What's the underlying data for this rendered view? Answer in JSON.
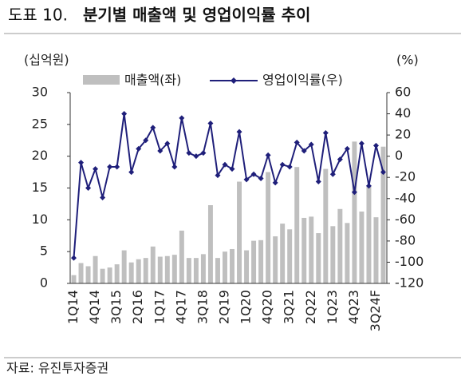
{
  "chart_data": {
    "type": "bar_line",
    "figure_label": "도표 10.",
    "title": "분기별 매출액 및 영업이익률 추이",
    "y_unit": "(십억원)",
    "y2_unit": "(%)",
    "source": "자료: 유진투자증권",
    "categories": [
      "1Q14",
      null,
      null,
      "4Q14",
      null,
      null,
      "3Q15",
      null,
      null,
      "2Q16",
      null,
      null,
      "1Q17",
      null,
      null,
      "4Q17",
      null,
      null,
      "3Q18",
      null,
      null,
      "2Q19",
      null,
      null,
      "1Q20",
      null,
      null,
      "4Q20",
      null,
      null,
      "3Q21",
      null,
      null,
      "2Q22",
      null,
      null,
      "1Q23",
      null,
      null,
      "4Q23",
      null,
      null,
      "3Q24F",
      null
    ],
    "series": [
      {
        "name": "매출액(좌)",
        "color": "#bfbfbf",
        "axis": "y",
        "values": [
          1.3,
          3.2,
          2.7,
          4.3,
          2.3,
          2.5,
          3.0,
          5.2,
          3.3,
          3.8,
          4.0,
          5.8,
          4.2,
          4.3,
          4.5,
          8.3,
          4.0,
          4.0,
          4.6,
          12.3,
          4.0,
          5.0,
          5.4,
          16.0,
          5.2,
          6.7,
          6.8,
          17.5,
          7.4,
          9.4,
          8.5,
          18.3,
          10.3,
          10.5,
          7.9,
          18.0,
          9.0,
          11.7,
          9.5,
          22.3,
          11.3,
          15.2,
          10.4,
          21.5
        ]
      },
      {
        "name": "영업이익률(우)",
        "color": "#1f1f7a",
        "axis": "y2",
        "values": [
          -96,
          -6,
          -30,
          -12,
          -39,
          -10,
          -10,
          40,
          -15,
          7,
          15,
          27,
          5,
          12,
          -10,
          36,
          3,
          0,
          3,
          31,
          -18,
          -8,
          -12,
          23,
          -22,
          -17,
          -21,
          1,
          -25,
          -8,
          -10,
          13,
          5,
          11,
          -24,
          22,
          -17,
          -3,
          7,
          -34,
          12,
          -28,
          10,
          -15
        ]
      }
    ],
    "ylim": [
      0,
      30
    ],
    "yticks": [
      0,
      5,
      10,
      15,
      20,
      25,
      30
    ],
    "y2lim": [
      -120,
      60
    ],
    "y2ticks": [
      -120,
      -100,
      -80,
      -60,
      -40,
      -20,
      0,
      20,
      40,
      60
    ],
    "y2_negative_color": "#e00000"
  }
}
